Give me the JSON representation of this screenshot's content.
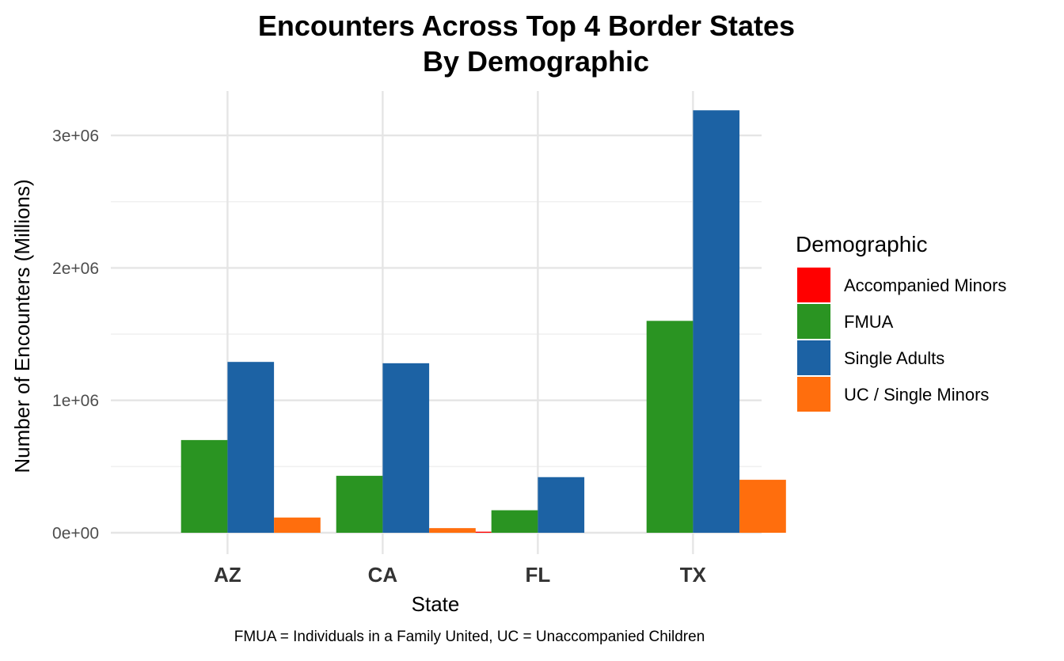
{
  "chart_data": {
    "type": "bar",
    "title": "Encounters Across Top 4 Border States",
    "subtitle": "By Demographic",
    "xlabel": "State",
    "ylabel": "Number of Encounters (Millions)",
    "caption": "FMUA = Individuals in a Family United, UC = Unaccompanied Children",
    "categories": [
      "AZ",
      "CA",
      "FL",
      "TX"
    ],
    "ylim": [
      0,
      3300000
    ],
    "yticks": [
      0,
      1000000,
      2000000,
      3000000
    ],
    "ytick_labels": [
      "0e+00",
      "1e+06",
      "2e+06",
      "3e+06"
    ],
    "grid": true,
    "legend": {
      "title": "Demographic",
      "position": "right"
    },
    "series": [
      {
        "name": "Accompanied Minors",
        "color": "#ff0000",
        "values": [
          0,
          0,
          8000,
          0
        ]
      },
      {
        "name": "FMUA",
        "color": "#2a9422",
        "values": [
          700000,
          430000,
          170000,
          1600000
        ]
      },
      {
        "name": "Single Adults",
        "color": "#1c62a4",
        "values": [
          1290000,
          1280000,
          420000,
          3190000
        ]
      },
      {
        "name": "UC / Single Minors",
        "color": "#ff6e0d",
        "values": [
          115000,
          35000,
          0,
          400000
        ]
      }
    ]
  }
}
